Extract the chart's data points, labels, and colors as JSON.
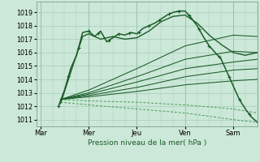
{
  "bg_color": "#cce8d8",
  "grid_color": "#a8ccbc",
  "line_dark": "#1a5c28",
  "line_med": "#2a7a3a",
  "line_light": "#4a9a5a",
  "xlabel": "Pression niveau de la mer( hPa )",
  "ylim": [
    1010.5,
    1019.8
  ],
  "yticks": [
    1011,
    1012,
    1013,
    1014,
    1015,
    1016,
    1017,
    1018,
    1019
  ],
  "day_labels": [
    "Mar",
    "Mer",
    "Jeu",
    "Ven",
    "Sam"
  ],
  "day_positions": [
    0,
    48,
    96,
    144,
    192
  ],
  "xlim": [
    -4,
    216
  ]
}
